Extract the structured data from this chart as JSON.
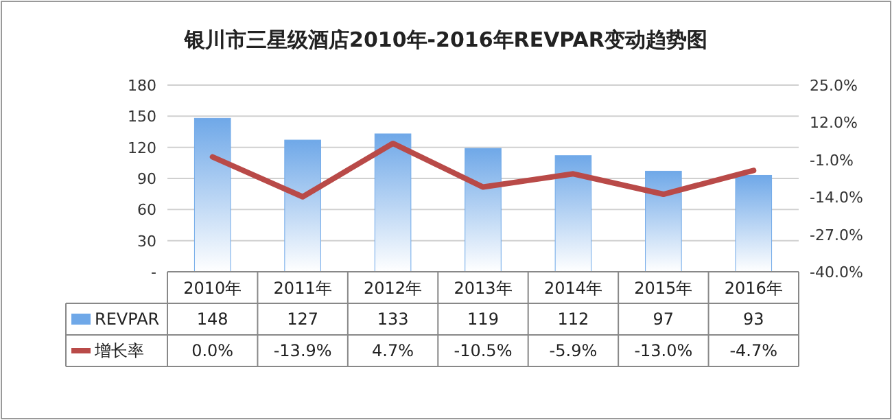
{
  "chart_data": {
    "type": "bar",
    "title": "银川市三星级酒店2010年-2016年REVPAR变动趋势图",
    "categories": [
      "2010年",
      "2011年",
      "2012年",
      "2013年",
      "2014年",
      "2015年",
      "2016年"
    ],
    "series": [
      {
        "name": "REVPAR",
        "color": "#6fa8e8",
        "values": [
          148,
          127,
          133,
          119,
          112,
          97,
          93
        ],
        "value_labels": [
          "148",
          "127",
          "133",
          "119",
          "112",
          "97",
          "93"
        ]
      },
      {
        "name": "增长率",
        "type": "line",
        "axis": "y2",
        "color": "#b94a48",
        "values": [
          0.0,
          -13.9,
          4.7,
          -10.5,
          -5.9,
          -13.0,
          -4.7
        ],
        "value_labels": [
          "0.0%",
          "-13.9%",
          "4.7%",
          "-10.5%",
          "-5.9%",
          "-13.0%",
          "-4.7%"
        ]
      }
    ],
    "ylim": [
      0,
      180
    ],
    "yticks": [
      {
        "value": 0,
        "label": "-"
      },
      30,
      60,
      90,
      120,
      150,
      180
    ],
    "y2lim": [
      -40,
      25
    ],
    "y2ticks": [
      {
        "value": -40,
        "label": "-40.0%"
      },
      {
        "value": -27,
        "label": "-27.0%"
      },
      {
        "value": -14,
        "label": "-14.0%"
      },
      {
        "value": -1,
        "label": "-1.0%"
      },
      {
        "value": 12,
        "label": "12.0%"
      },
      {
        "value": 25,
        "label": "25.0%"
      }
    ],
    "grid": "y",
    "legend": "bottom"
  }
}
